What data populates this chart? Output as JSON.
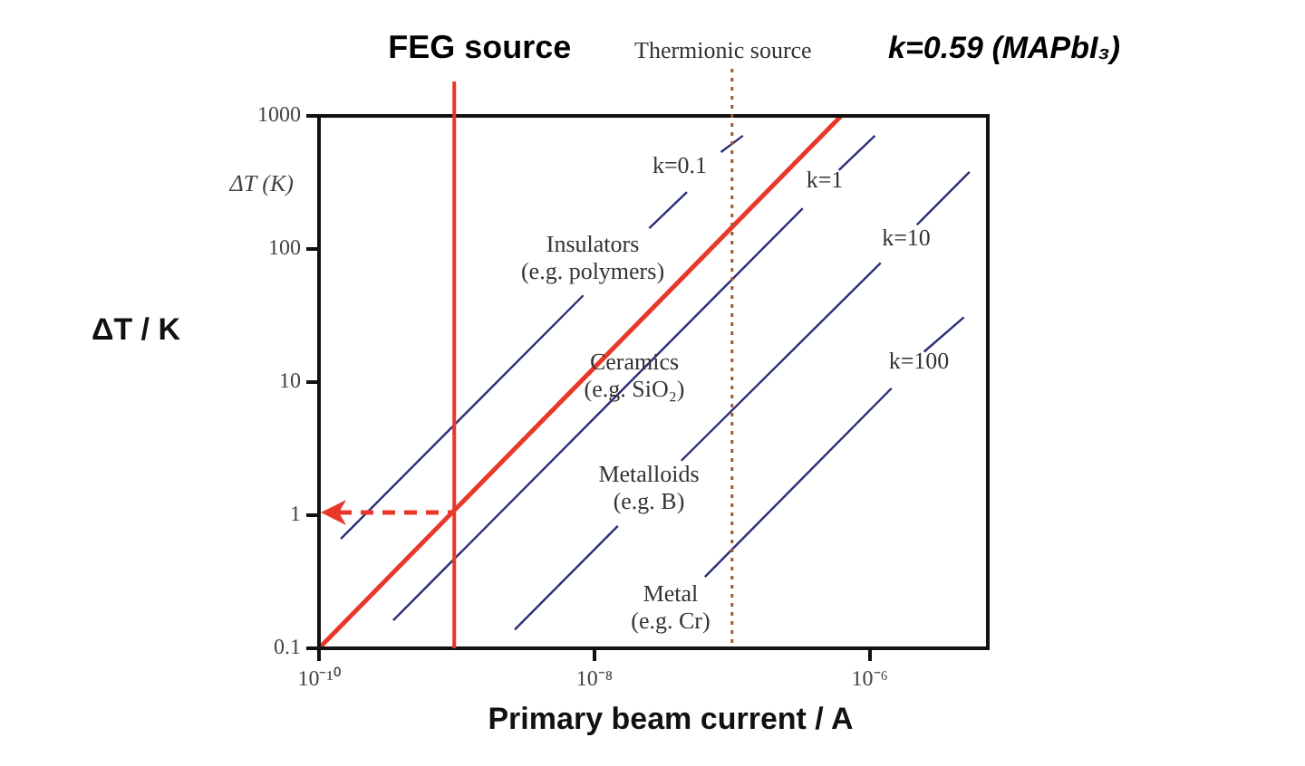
{
  "chart_data": {
    "type": "line",
    "xlabel": "Primary beam current / A",
    "ylabel": "ΔT / K",
    "log": "xy",
    "grid": false,
    "legend": false,
    "marker": "none",
    "xlim": [
      1e-10,
      7.2e-06
    ],
    "xticks": [
      {
        "value": 1e-10,
        "label": "10⁻¹⁰"
      },
      {
        "value": 1e-08,
        "label": "10⁻⁸"
      },
      {
        "value": 1e-06,
        "label": "10⁻⁶"
      }
    ],
    "ylim": [
      0.1,
      1000
    ],
    "yticks": [
      0.1,
      1,
      10,
      100,
      1000
    ],
    "series": [
      {
        "color": "#2b2e7a",
        "line_style": "solid",
        "x": [
          1.44e-10,
          8.3e-09,
          1.5e-08,
          2.5e-08,
          4.7e-08,
          6.5e-08,
          8.3e-08,
          1.2e-07
        ],
        "values": [
          0.665,
          44.8,
          null,
          143,
          268,
          null,
          535,
          710
        ]
      },
      {
        "color": "#2b2e7a",
        "line_style": "solid",
        "x": [
          3.46e-10,
          3.26e-07,
          4.5e-07,
          5.97e-07,
          1.09e-06
        ],
        "values": [
          0.162,
          202,
          null,
          391,
          710
        ]
      },
      {
        "color": "#2b2e7a",
        "line_style": "solid",
        "x": [
          2.64e-09,
          1.48e-08,
          2.5e-08,
          4.28e-08,
          1.2e-06,
          1.6e-06,
          2.2e-06,
          5.3e-06
        ],
        "values": [
          0.138,
          0.83,
          null,
          2.57,
          78.7,
          null,
          152,
          379
        ]
      },
      {
        "color": "#2b2e7a",
        "line_style": "solid",
        "x": [
          6.35e-08,
          1.44e-06,
          1.9e-06,
          2.48e-06,
          4.83e-06
        ],
        "values": [
          0.344,
          9.0,
          null,
          16.9,
          30.7
        ]
      },
      {
        "color": "#e8382a",
        "line_style": "solid",
        "x": [
          1e-10,
          6.2e-07
        ],
        "values": [
          0.1,
          1000
        ]
      }
    ],
    "ref_lines": [
      {
        "axis": "x",
        "value": 9.6e-10,
        "label": "FEG source",
        "color": "#e8382a",
        "line_style": "solid"
      },
      {
        "axis": "x",
        "value": 1e-07,
        "label": "Thermionic source",
        "color": "#9a5b3a",
        "line_style": "dotted"
      }
    ],
    "annotations": [
      "ΔT (K)",
      "k=0.59 (MAPbI₃)",
      "k=0.1",
      "Insulators\n(e.g. polymers)",
      "Ceramics\n(e.g. SiO₂)",
      "Metalloids\n(e.g. B)",
      "Metal\n(e.g. Cr)",
      "k=1",
      "k=10",
      "k=100"
    ]
  }
}
